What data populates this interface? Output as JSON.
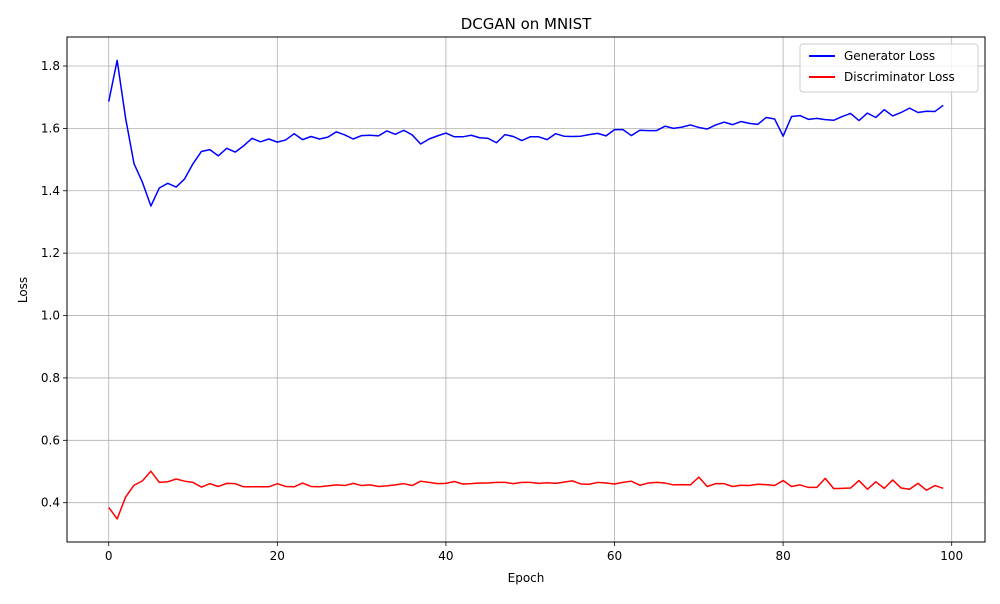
{
  "chart_data": {
    "type": "line",
    "title": "DCGAN on MNIST",
    "xlabel": "Epoch",
    "ylabel": "Loss",
    "xlim": [
      -4.95,
      103.95
    ],
    "ylim": [
      0.274,
      1.893
    ],
    "grid": true,
    "legend_position": "top-right",
    "xticks": [
      0,
      20,
      40,
      60,
      80,
      100
    ],
    "yticks": [
      0.4,
      0.6,
      0.8,
      1.0,
      1.2,
      1.4,
      1.6,
      1.8
    ],
    "xtick_labels": [
      "0",
      "20",
      "40",
      "60",
      "80",
      "100"
    ],
    "ytick_labels": [
      "0.4",
      "0.6",
      "0.8",
      "1.0",
      "1.2",
      "1.4",
      "1.6",
      "1.8"
    ],
    "x": [
      0,
      1,
      2,
      3,
      4,
      5,
      6,
      7,
      8,
      9,
      10,
      11,
      12,
      13,
      14,
      15,
      16,
      17,
      18,
      19,
      20,
      21,
      22,
      23,
      24,
      25,
      26,
      27,
      28,
      29,
      30,
      31,
      32,
      33,
      34,
      35,
      36,
      37,
      38,
      39,
      40,
      41,
      42,
      43,
      44,
      45,
      46,
      47,
      48,
      49,
      50,
      51,
      52,
      53,
      54,
      55,
      56,
      57,
      58,
      59,
      60,
      61,
      62,
      63,
      64,
      65,
      66,
      67,
      68,
      69,
      70,
      71,
      72,
      73,
      74,
      75,
      76,
      77,
      78,
      79,
      80,
      81,
      82,
      83,
      84,
      85,
      86,
      87,
      88,
      89,
      90,
      91,
      92,
      93,
      94,
      95,
      96,
      97,
      98,
      99
    ],
    "series": [
      {
        "name": "Generator Loss",
        "color": "#0000ff",
        "values": [
          1.686,
          1.818,
          1.633,
          1.487,
          1.427,
          1.351,
          1.409,
          1.424,
          1.412,
          1.438,
          1.487,
          1.526,
          1.532,
          1.512,
          1.536,
          1.524,
          1.544,
          1.568,
          1.557,
          1.566,
          1.556,
          1.563,
          1.583,
          1.564,
          1.574,
          1.566,
          1.572,
          1.589,
          1.579,
          1.566,
          1.577,
          1.578,
          1.576,
          1.592,
          1.581,
          1.594,
          1.579,
          1.55,
          1.566,
          1.576,
          1.585,
          1.573,
          1.573,
          1.578,
          1.57,
          1.568,
          1.554,
          1.58,
          1.574,
          1.561,
          1.573,
          1.573,
          1.564,
          1.583,
          1.575,
          1.574,
          1.575,
          1.58,
          1.584,
          1.576,
          1.596,
          1.596,
          1.577,
          1.594,
          1.593,
          1.593,
          1.607,
          1.6,
          1.604,
          1.611,
          1.603,
          1.598,
          1.611,
          1.62,
          1.612,
          1.622,
          1.616,
          1.613,
          1.635,
          1.63,
          1.575,
          1.638,
          1.641,
          1.629,
          1.632,
          1.628,
          1.626,
          1.638,
          1.648,
          1.625,
          1.649,
          1.635,
          1.66,
          1.64,
          1.651,
          1.665,
          1.651,
          1.655,
          1.654,
          1.674
        ]
      },
      {
        "name": "Discriminator Loss",
        "color": "#ff0000",
        "values": [
          0.385,
          0.348,
          0.418,
          0.456,
          0.47,
          0.501,
          0.465,
          0.467,
          0.476,
          0.469,
          0.465,
          0.45,
          0.461,
          0.452,
          0.462,
          0.461,
          0.451,
          0.451,
          0.451,
          0.451,
          0.461,
          0.452,
          0.451,
          0.463,
          0.452,
          0.451,
          0.454,
          0.457,
          0.455,
          0.462,
          0.455,
          0.457,
          0.452,
          0.454,
          0.457,
          0.461,
          0.455,
          0.469,
          0.465,
          0.461,
          0.462,
          0.468,
          0.46,
          0.461,
          0.463,
          0.463,
          0.465,
          0.465,
          0.461,
          0.465,
          0.465,
          0.462,
          0.464,
          0.462,
          0.466,
          0.47,
          0.46,
          0.459,
          0.465,
          0.463,
          0.46,
          0.465,
          0.469,
          0.456,
          0.463,
          0.465,
          0.463,
          0.457,
          0.458,
          0.457,
          0.482,
          0.452,
          0.461,
          0.461,
          0.452,
          0.456,
          0.455,
          0.459,
          0.458,
          0.455,
          0.471,
          0.452,
          0.457,
          0.449,
          0.449,
          0.478,
          0.445,
          0.446,
          0.447,
          0.471,
          0.443,
          0.467,
          0.446,
          0.473,
          0.447,
          0.443,
          0.462,
          0.44,
          0.455,
          0.446
        ]
      }
    ]
  }
}
